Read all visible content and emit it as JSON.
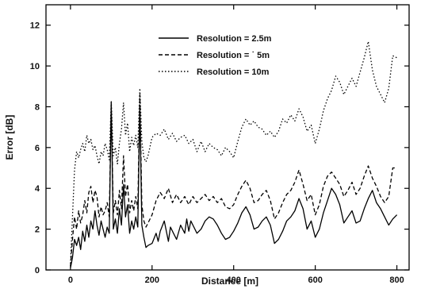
{
  "chart_data": {
    "type": "line",
    "xlabel": "Distance [m]",
    "ylabel": "Error [dB]",
    "xlim": [
      -60,
      830
    ],
    "ylim": [
      0,
      13
    ],
    "xticks": [
      0,
      200,
      400,
      600,
      800
    ],
    "yticks": [
      0,
      2,
      4,
      6,
      8,
      10,
      12
    ],
    "grid": false,
    "legend_position": "top-center",
    "series": [
      {
        "name": "Resolution = 2.5m",
        "style": "solid",
        "x": [
          0,
          5,
          10,
          15,
          20,
          25,
          30,
          35,
          40,
          45,
          50,
          55,
          60,
          65,
          70,
          75,
          80,
          85,
          90,
          95,
          100,
          105,
          110,
          115,
          120,
          125,
          130,
          135,
          140,
          145,
          150,
          155,
          160,
          165,
          170,
          175,
          180,
          185,
          190,
          200,
          210,
          215,
          220,
          230,
          240,
          245,
          250,
          260,
          270,
          280,
          285,
          290,
          295,
          300,
          310,
          320,
          330,
          340,
          350,
          360,
          370,
          380,
          390,
          400,
          410,
          420,
          430,
          440,
          450,
          460,
          470,
          480,
          490,
          500,
          510,
          520,
          530,
          540,
          550,
          560,
          570,
          580,
          590,
          600,
          610,
          620,
          630,
          640,
          650,
          660,
          670,
          680,
          690,
          700,
          710,
          720,
          730,
          740,
          750,
          760,
          770,
          780,
          790,
          800
        ],
        "values": [
          0.1,
          0.6,
          1.5,
          1.2,
          1.6,
          1.0,
          1.9,
          1.4,
          2.2,
          1.6,
          2.4,
          2.0,
          2.9,
          2.2,
          1.7,
          2.4,
          2.0,
          1.6,
          2.1,
          1.8,
          8.2,
          2.0,
          2.5,
          1.8,
          3.0,
          2.2,
          4.2,
          2.6,
          3.2,
          1.8,
          2.4,
          2.0,
          2.6,
          2.1,
          8.0,
          2.2,
          1.6,
          1.1,
          1.2,
          1.3,
          1.8,
          1.4,
          1.9,
          2.4,
          1.4,
          2.1,
          1.9,
          1.5,
          2.2,
          1.8,
          2.5,
          1.9,
          2.4,
          2.2,
          1.8,
          2.0,
          2.4,
          2.6,
          2.5,
          2.2,
          1.8,
          1.5,
          1.6,
          1.9,
          2.3,
          2.8,
          3.1,
          2.7,
          2.0,
          2.1,
          2.4,
          2.6,
          2.2,
          1.3,
          1.5,
          1.9,
          2.4,
          2.6,
          2.9,
          3.5,
          3.0,
          2.0,
          2.4,
          1.6,
          2.0,
          2.8,
          3.4,
          4.0,
          3.7,
          3.2,
          2.3,
          2.6,
          2.9,
          2.3,
          2.4,
          3.0,
          3.5,
          3.9,
          3.3,
          3.0,
          2.6,
          2.2,
          2.5,
          2.7
        ]
      },
      {
        "name": "Resolution = ˙ 5m",
        "style": "dashed",
        "x": [
          0,
          5,
          10,
          15,
          20,
          25,
          30,
          35,
          40,
          45,
          50,
          55,
          60,
          65,
          70,
          75,
          80,
          85,
          90,
          95,
          100,
          105,
          110,
          115,
          120,
          125,
          130,
          135,
          140,
          145,
          150,
          155,
          160,
          165,
          170,
          175,
          180,
          185,
          190,
          200,
          210,
          220,
          230,
          240,
          250,
          260,
          270,
          280,
          290,
          300,
          310,
          320,
          330,
          340,
          350,
          360,
          370,
          380,
          390,
          400,
          410,
          420,
          430,
          440,
          450,
          460,
          470,
          480,
          490,
          500,
          510,
          520,
          530,
          540,
          550,
          560,
          570,
          580,
          590,
          600,
          610,
          620,
          630,
          640,
          650,
          660,
          670,
          680,
          690,
          700,
          710,
          720,
          730,
          740,
          750,
          760,
          770,
          780,
          790,
          800
        ],
        "values": [
          0.2,
          1.5,
          2.6,
          2.0,
          2.9,
          2.3,
          2.7,
          3.4,
          2.8,
          3.8,
          4.1,
          3.3,
          3.9,
          3.6,
          2.6,
          3.1,
          2.7,
          2.9,
          3.3,
          2.6,
          8.1,
          2.8,
          3.4,
          2.7,
          3.9,
          3.0,
          5.6,
          3.6,
          4.2,
          2.8,
          3.4,
          2.9,
          3.6,
          3.0,
          8.6,
          3.2,
          2.4,
          2.1,
          2.3,
          2.7,
          3.4,
          3.8,
          3.5,
          4.0,
          3.3,
          3.7,
          3.3,
          3.6,
          3.2,
          3.6,
          3.3,
          3.5,
          3.7,
          3.4,
          3.6,
          3.3,
          3.5,
          3.1,
          3.0,
          3.2,
          3.7,
          4.1,
          4.4,
          4.0,
          3.3,
          3.4,
          3.7,
          3.9,
          3.4,
          2.5,
          2.8,
          3.3,
          3.7,
          3.9,
          4.3,
          4.9,
          4.2,
          3.4,
          3.7,
          2.7,
          3.2,
          4.1,
          4.6,
          4.8,
          4.5,
          4.2,
          3.6,
          3.9,
          4.3,
          3.7,
          4.0,
          4.6,
          5.1,
          4.5,
          4.1,
          3.6,
          3.3,
          3.6,
          5.0,
          5.0
        ]
      },
      {
        "name": "Resolution = 10m",
        "style": "dotted",
        "x": [
          0,
          5,
          10,
          15,
          20,
          25,
          30,
          35,
          40,
          45,
          50,
          55,
          60,
          65,
          70,
          75,
          80,
          85,
          90,
          95,
          100,
          105,
          110,
          115,
          120,
          125,
          130,
          135,
          140,
          145,
          150,
          155,
          160,
          165,
          170,
          175,
          180,
          185,
          190,
          200,
          210,
          220,
          230,
          240,
          250,
          260,
          270,
          280,
          290,
          300,
          310,
          320,
          330,
          340,
          350,
          360,
          370,
          380,
          390,
          400,
          410,
          420,
          430,
          440,
          450,
          460,
          470,
          480,
          490,
          500,
          510,
          520,
          530,
          540,
          550,
          560,
          570,
          580,
          590,
          600,
          610,
          620,
          630,
          640,
          650,
          660,
          670,
          680,
          690,
          700,
          710,
          720,
          730,
          740,
          750,
          760,
          770,
          780,
          790,
          800
        ],
        "values": [
          0.3,
          2.6,
          4.9,
          5.8,
          5.5,
          5.9,
          6.2,
          5.8,
          6.6,
          6.2,
          6.4,
          5.9,
          6.1,
          5.6,
          5.2,
          5.8,
          5.6,
          6.2,
          5.9,
          5.4,
          8.3,
          5.6,
          6.0,
          5.2,
          6.2,
          6.9,
          8.2,
          6.6,
          7.2,
          5.8,
          6.5,
          6.1,
          6.6,
          6.0,
          8.9,
          6.3,
          5.5,
          5.3,
          5.6,
          6.5,
          6.7,
          6.6,
          6.9,
          6.4,
          6.7,
          6.3,
          6.5,
          6.6,
          6.2,
          6.4,
          5.8,
          6.3,
          5.8,
          6.2,
          6.0,
          5.9,
          5.6,
          6.0,
          5.8,
          5.5,
          6.3,
          7.0,
          7.4,
          7.1,
          7.3,
          7.0,
          6.9,
          6.6,
          6.8,
          6.5,
          6.8,
          7.4,
          7.2,
          7.6,
          7.3,
          7.9,
          7.5,
          6.8,
          7.1,
          6.2,
          6.9,
          7.8,
          8.4,
          8.8,
          9.5,
          9.2,
          8.6,
          9.0,
          9.4,
          9.0,
          9.7,
          10.4,
          11.2,
          9.8,
          9.0,
          8.6,
          8.2,
          8.9,
          10.5,
          10.4
        ]
      }
    ]
  }
}
